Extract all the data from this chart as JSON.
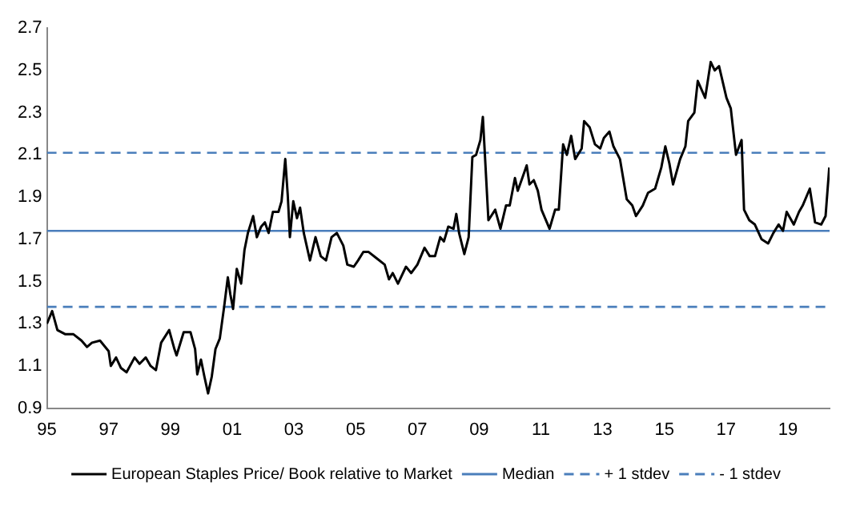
{
  "chart_data": {
    "type": "line",
    "x": [
      1995.0,
      1995.17,
      1995.34,
      1995.6,
      1995.86,
      1996.12,
      1996.3,
      1996.46,
      1996.72,
      1997.0,
      1997.07,
      1997.24,
      1997.4,
      1997.58,
      1997.84,
      1998.0,
      1998.2,
      1998.36,
      1998.53,
      1998.7,
      1998.96,
      1999.13,
      1999.2,
      1999.43,
      1999.65,
      1999.8,
      1999.87,
      1999.99,
      2000.1,
      2000.22,
      2000.34,
      2000.46,
      2000.6,
      2000.74,
      2000.86,
      2000.94,
      2001.03,
      2001.15,
      2001.29,
      2001.4,
      2001.51,
      2001.68,
      2001.8,
      2001.94,
      2002.06,
      2002.18,
      2002.32,
      2002.5,
      2002.6,
      2002.72,
      2002.8,
      2002.87,
      2002.98,
      2003.1,
      2003.2,
      2003.32,
      2003.52,
      2003.7,
      2003.87,
      2004.04,
      2004.22,
      2004.39,
      2004.6,
      2004.73,
      2004.94,
      2005.08,
      2005.25,
      2005.42,
      2005.68,
      2005.94,
      2006.08,
      2006.2,
      2006.37,
      2006.63,
      2006.8,
      2007.0,
      2007.23,
      2007.4,
      2007.57,
      2007.74,
      2007.86,
      2008.0,
      2008.17,
      2008.26,
      2008.35,
      2008.52,
      2008.66,
      2008.78,
      2008.9,
      2009.04,
      2009.12,
      2009.3,
      2009.52,
      2009.69,
      2009.87,
      2009.99,
      2010.16,
      2010.25,
      2010.42,
      2010.54,
      2010.63,
      2010.77,
      2010.9,
      2011.02,
      2011.28,
      2011.46,
      2011.58,
      2011.72,
      2011.84,
      2011.98,
      2012.11,
      2012.32,
      2012.4,
      2012.58,
      2012.75,
      2012.92,
      2013.04,
      2013.22,
      2013.35,
      2013.56,
      2013.78,
      2013.96,
      2014.08,
      2014.3,
      2014.47,
      2014.7,
      2014.9,
      2015.03,
      2015.16,
      2015.28,
      2015.51,
      2015.68,
      2015.77,
      2015.97,
      2016.08,
      2016.32,
      2016.5,
      2016.63,
      2016.77,
      2017.01,
      2017.15,
      2017.32,
      2017.5,
      2017.58,
      2017.75,
      2017.93,
      2018.15,
      2018.36,
      2018.53,
      2018.7,
      2018.84,
      2018.96,
      2019.19,
      2019.36,
      2019.48,
      2019.71,
      2019.88,
      2020.08,
      2020.22,
      2020.34
    ],
    "series": [
      {
        "name": "European Staples Price/ Book relative to Market",
        "color": "#000000",
        "values": [
          1.3,
          1.36,
          1.27,
          1.25,
          1.25,
          1.22,
          1.19,
          1.21,
          1.22,
          1.17,
          1.1,
          1.14,
          1.09,
          1.07,
          1.14,
          1.11,
          1.14,
          1.1,
          1.08,
          1.21,
          1.27,
          1.18,
          1.15,
          1.26,
          1.26,
          1.18,
          1.06,
          1.13,
          1.05,
          0.97,
          1.05,
          1.18,
          1.23,
          1.38,
          1.52,
          1.44,
          1.37,
          1.56,
          1.49,
          1.65,
          1.73,
          1.81,
          1.71,
          1.76,
          1.78,
          1.73,
          1.83,
          1.83,
          1.88,
          2.08,
          1.91,
          1.71,
          1.88,
          1.8,
          1.85,
          1.73,
          1.6,
          1.71,
          1.62,
          1.6,
          1.71,
          1.73,
          1.67,
          1.58,
          1.57,
          1.6,
          1.64,
          1.64,
          1.61,
          1.58,
          1.51,
          1.54,
          1.49,
          1.57,
          1.54,
          1.58,
          1.66,
          1.62,
          1.62,
          1.71,
          1.69,
          1.76,
          1.75,
          1.82,
          1.73,
          1.63,
          1.71,
          2.09,
          2.1,
          2.17,
          2.28,
          1.79,
          1.84,
          1.75,
          1.86,
          1.86,
          1.99,
          1.93,
          2.0,
          2.05,
          1.96,
          1.98,
          1.93,
          1.84,
          1.75,
          1.84,
          1.84,
          2.15,
          2.1,
          2.19,
          2.08,
          2.13,
          2.26,
          2.23,
          2.15,
          2.13,
          2.18,
          2.21,
          2.14,
          2.08,
          1.89,
          1.86,
          1.81,
          1.86,
          1.92,
          1.94,
          2.04,
          2.14,
          2.06,
          1.96,
          2.08,
          2.14,
          2.26,
          2.3,
          2.45,
          2.37,
          2.54,
          2.5,
          2.52,
          2.37,
          2.32,
          2.1,
          2.17,
          1.84,
          1.79,
          1.77,
          1.7,
          1.68,
          1.73,
          1.77,
          1.74,
          1.83,
          1.77,
          1.83,
          1.86,
          1.94,
          1.78,
          1.77,
          1.81,
          2.04
        ]
      }
    ],
    "ref_lines": [
      {
        "axis": "y",
        "value": 1.74,
        "label": "Median",
        "color": "#4a7ebb",
        "line_style": "solid"
      },
      {
        "axis": "y",
        "value": 2.11,
        "label": "+ 1 stdev",
        "color": "#4a7ebb",
        "line_style": "dashed"
      },
      {
        "axis": "y",
        "value": 1.38,
        "label": "- 1 stdev",
        "color": "#4a7ebb",
        "line_style": "dashed"
      }
    ],
    "xlim": [
      1995,
      2020.35
    ],
    "xticks": [
      {
        "value": 1995,
        "label": "95"
      },
      {
        "value": 1997,
        "label": "97"
      },
      {
        "value": 1999,
        "label": "99"
      },
      {
        "value": 2001,
        "label": "01"
      },
      {
        "value": 2003,
        "label": "03"
      },
      {
        "value": 2005,
        "label": "05"
      },
      {
        "value": 2007,
        "label": "07"
      },
      {
        "value": 2009,
        "label": "09"
      },
      {
        "value": 2011,
        "label": "11"
      },
      {
        "value": 2013,
        "label": "13"
      },
      {
        "value": 2015,
        "label": "15"
      },
      {
        "value": 2017,
        "label": "17"
      },
      {
        "value": 2019,
        "label": "19"
      }
    ],
    "ylim": [
      0.9,
      2.7
    ],
    "yticks": [
      0.9,
      1.1,
      1.3,
      1.5,
      1.7,
      1.9,
      2.1,
      2.3,
      2.5,
      2.7
    ],
    "legend": "bottom",
    "line_style": "solid",
    "marker": "none"
  }
}
